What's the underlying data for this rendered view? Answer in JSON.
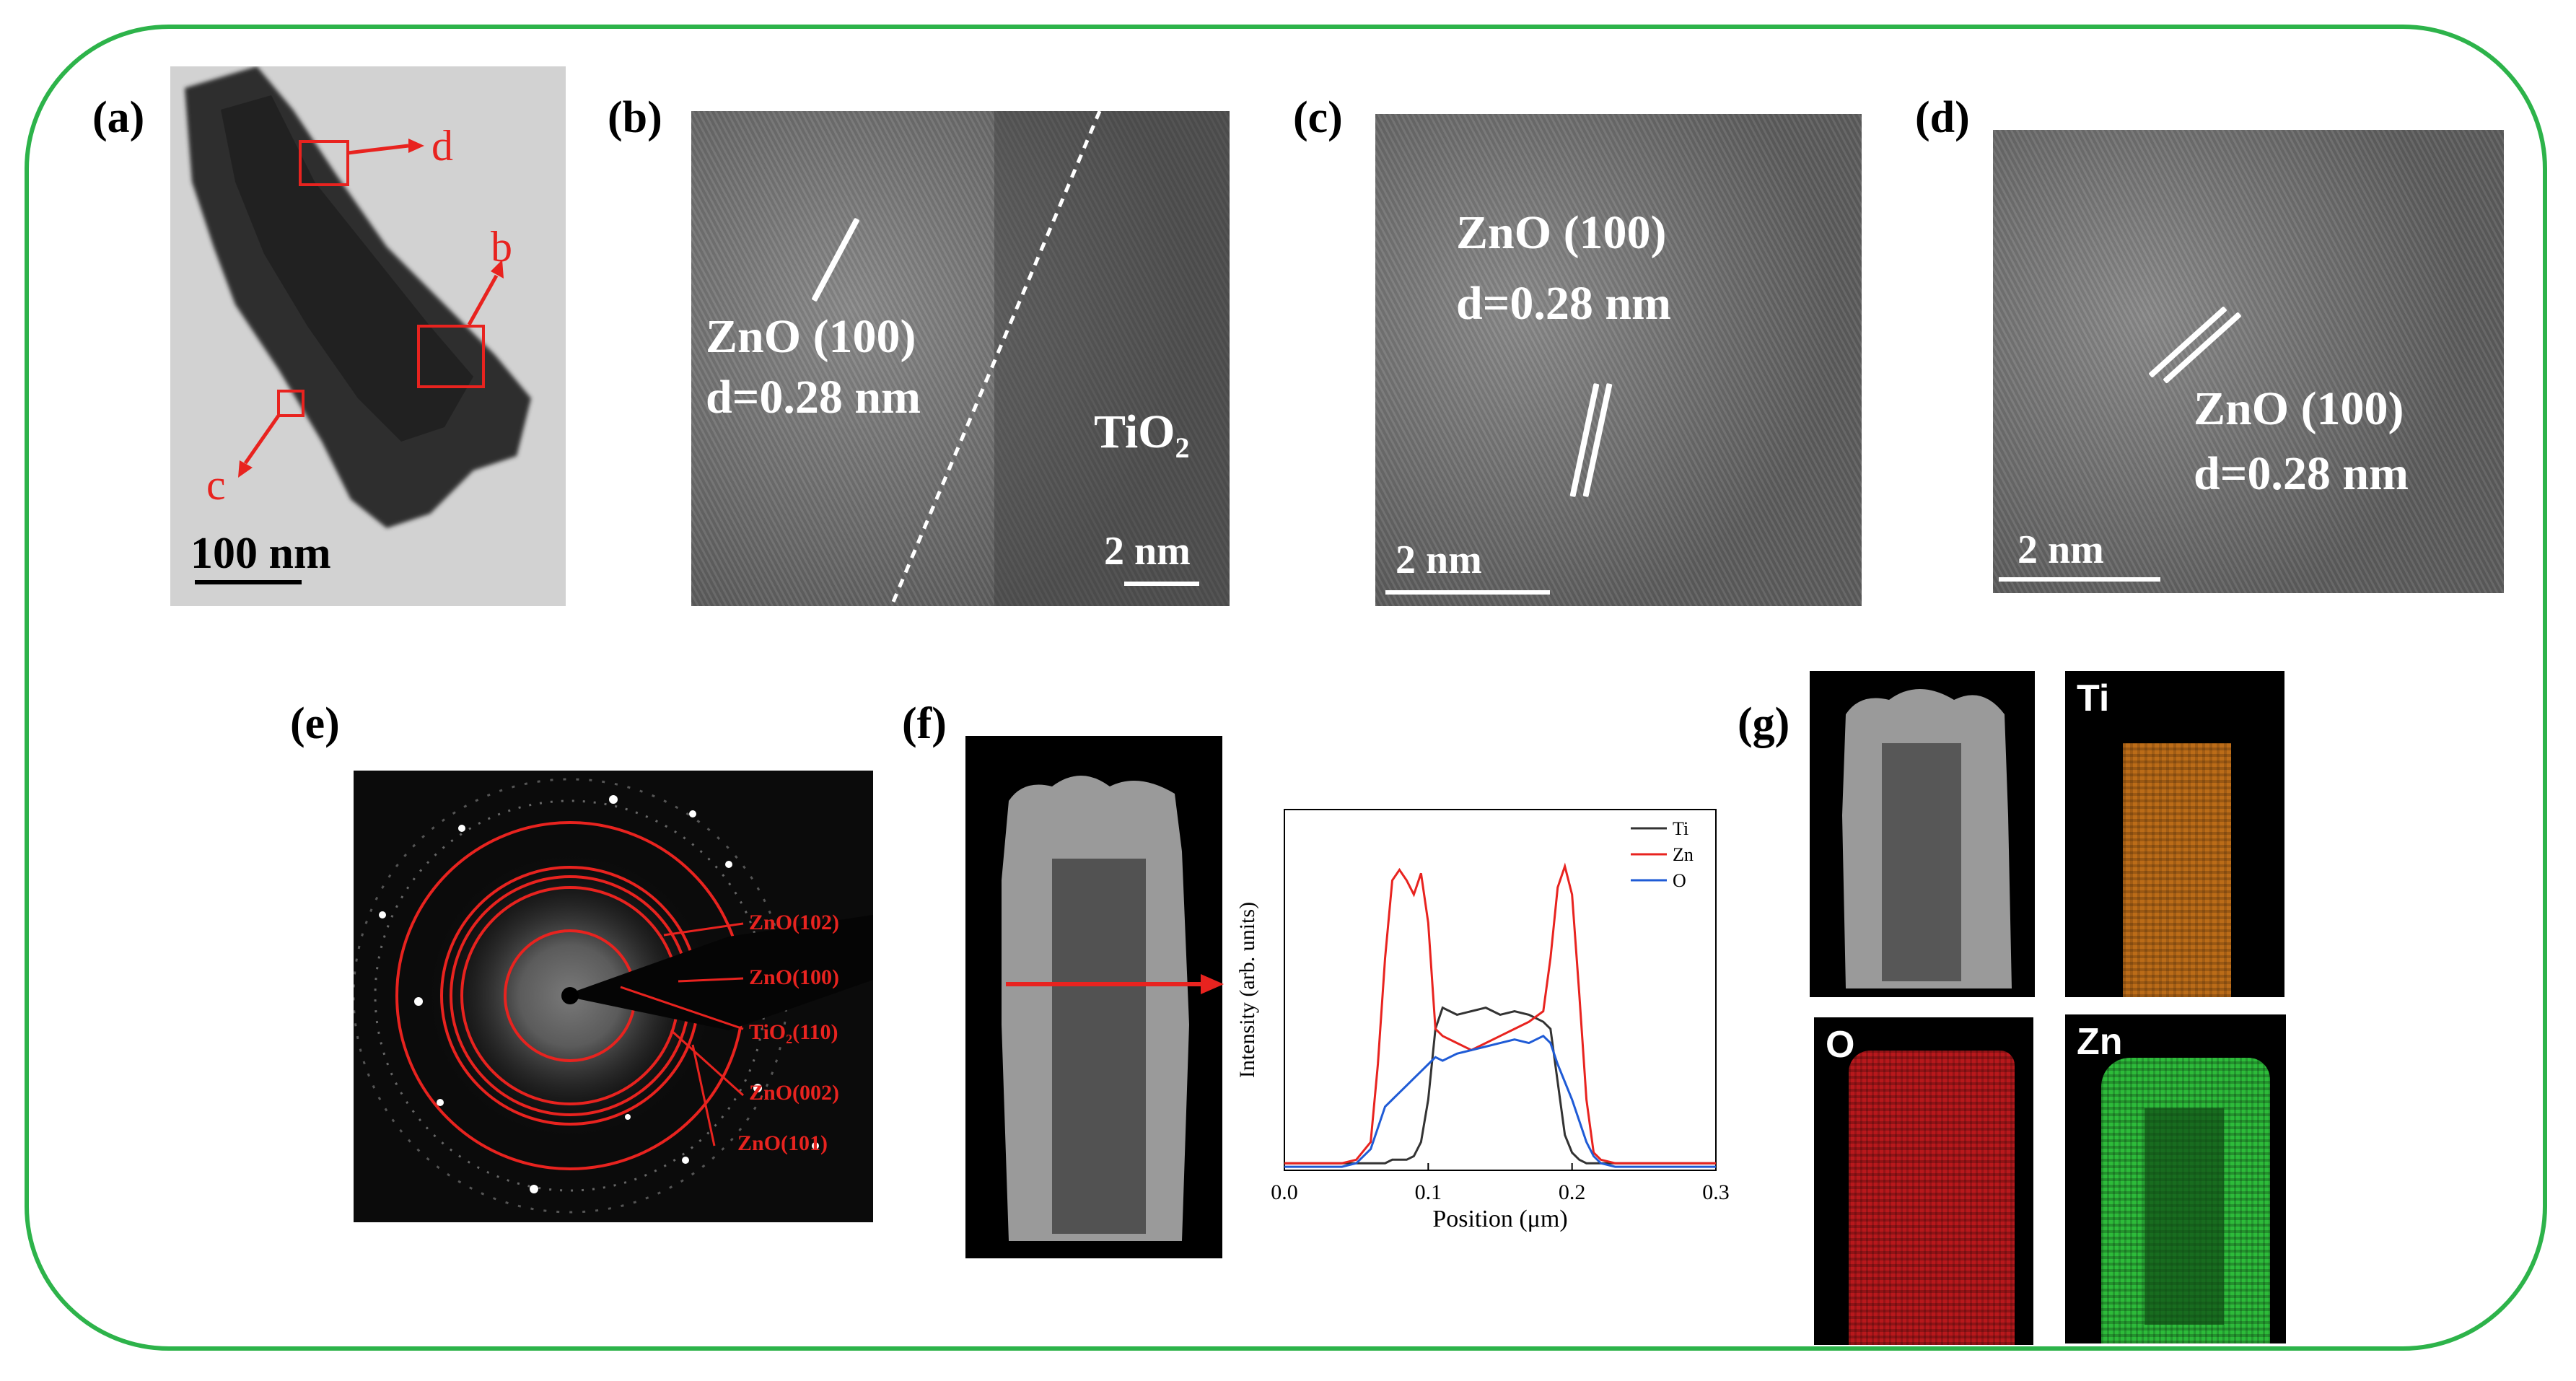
{
  "panels": {
    "a": {
      "label": "(a)",
      "scale": "100 nm",
      "markers": [
        "d",
        "b",
        "c"
      ]
    },
    "b": {
      "label": "(b)",
      "plane": "ZnO (100)",
      "spacing": "d=0.28 nm",
      "phase": "TiO",
      "phase_sub": "2",
      "scale": "2 nm"
    },
    "c": {
      "label": "(c)",
      "plane": "ZnO (100)",
      "spacing": "d=0.28 nm",
      "scale": "2 nm"
    },
    "d": {
      "label": "(d)",
      "plane": "ZnO (100)",
      "spacing": "d=0.28 nm",
      "scale": "2 nm"
    },
    "e": {
      "label": "(e)",
      "rings": [
        "ZnO(102)",
        "ZnO(100)",
        "TiO₂(110)",
        "ZnO(002)",
        "ZnO(101)"
      ]
    },
    "f": {
      "label": "(f)"
    },
    "g": {
      "label": "(g)",
      "maps": [
        "Ti",
        "O",
        "Zn"
      ]
    }
  },
  "chart_data": {
    "type": "line",
    "xlabel": "Position (μm)",
    "ylabel": "Intensity (arb. units)",
    "xlim": [
      0,
      0.3
    ],
    "xticks": [
      "0.0",
      "0.1",
      "0.2",
      "0.3"
    ],
    "legend": "top-right",
    "x": [
      0.0,
      0.02,
      0.04,
      0.05,
      0.06,
      0.065,
      0.07,
      0.075,
      0.08,
      0.085,
      0.09,
      0.095,
      0.1,
      0.105,
      0.11,
      0.12,
      0.13,
      0.14,
      0.15,
      0.16,
      0.17,
      0.18,
      0.185,
      0.19,
      0.195,
      0.2,
      0.205,
      0.21,
      0.215,
      0.22,
      0.23,
      0.25,
      0.28,
      0.3
    ],
    "series": [
      {
        "name": "Ti",
        "color": "#333333",
        "values": [
          0.02,
          0.02,
          0.02,
          0.02,
          0.02,
          0.02,
          0.02,
          0.03,
          0.03,
          0.03,
          0.04,
          0.08,
          0.2,
          0.4,
          0.46,
          0.44,
          0.45,
          0.46,
          0.44,
          0.45,
          0.44,
          0.42,
          0.4,
          0.25,
          0.1,
          0.05,
          0.03,
          0.02,
          0.02,
          0.02,
          0.02,
          0.02,
          0.02,
          0.02
        ]
      },
      {
        "name": "Zn",
        "color": "#e8231f",
        "values": [
          0.02,
          0.02,
          0.02,
          0.03,
          0.08,
          0.3,
          0.6,
          0.82,
          0.85,
          0.82,
          0.78,
          0.84,
          0.7,
          0.4,
          0.38,
          0.36,
          0.34,
          0.36,
          0.38,
          0.4,
          0.42,
          0.45,
          0.6,
          0.8,
          0.86,
          0.78,
          0.5,
          0.2,
          0.05,
          0.03,
          0.02,
          0.02,
          0.02,
          0.02
        ]
      },
      {
        "name": "O",
        "color": "#1f5bd6",
        "values": [
          0.01,
          0.01,
          0.01,
          0.02,
          0.06,
          0.12,
          0.18,
          0.2,
          0.22,
          0.24,
          0.26,
          0.28,
          0.3,
          0.32,
          0.31,
          0.33,
          0.34,
          0.35,
          0.36,
          0.37,
          0.36,
          0.38,
          0.36,
          0.3,
          0.25,
          0.2,
          0.14,
          0.08,
          0.04,
          0.02,
          0.01,
          0.01,
          0.01,
          0.01
        ]
      }
    ]
  }
}
